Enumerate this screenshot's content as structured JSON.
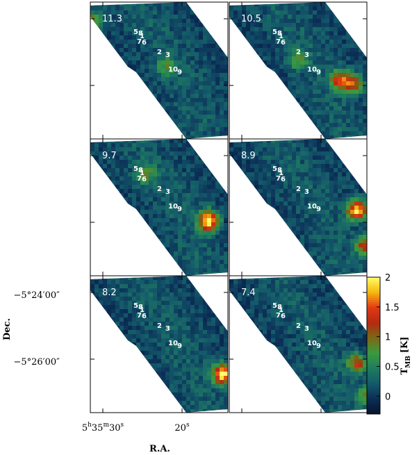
{
  "chart_data": {
    "type": "heatmap",
    "layout": "3 rows x 2 columns channel maps",
    "xlabel": "R.A.",
    "ylabel": "Dec.",
    "x_ticks": [
      {
        "label_html": "5h35m30s",
        "h": "h",
        "m": "m",
        "s": "s",
        "text_pre": "5",
        "text_mid1": "35",
        "text_mid2": "30"
      },
      {
        "label": "20s",
        "num": "20",
        "unit": "s"
      }
    ],
    "y_ticks": [
      "−5°24′00″",
      "−5°26′00″"
    ],
    "colorbar": {
      "label_main": "T",
      "label_sub": "MB",
      "label_unit": "[K]",
      "ticks": [
        2,
        1.5,
        1,
        0.5,
        0
      ],
      "range": [
        -0.3,
        2.0
      ],
      "colormap": [
        "#06142b",
        "#0b2f57",
        "#145a6a",
        "#1f7b5e",
        "#3b9a3f",
        "#7a6a15",
        "#b32a12",
        "#e23a16",
        "#f6b80e",
        "#ffff6a"
      ]
    },
    "panels": [
      {
        "velocity": "11.3",
        "peaks": [
          {
            "u": 0.02,
            "v": 0.14,
            "val": 0.9
          },
          {
            "u": 0.55,
            "v": 0.47,
            "val": 0.6
          }
        ]
      },
      {
        "velocity": "10.5",
        "peaks": [
          {
            "u": 0.8,
            "v": 0.57,
            "val": 1.25
          },
          {
            "u": 0.9,
            "v": 0.6,
            "val": 1.2
          },
          {
            "u": 0.5,
            "v": 0.42,
            "val": 0.7
          }
        ]
      },
      {
        "velocity": "9.7",
        "peaks": [
          {
            "u": 0.86,
            "v": 0.6,
            "val": 2.0
          },
          {
            "u": 0.4,
            "v": 0.26,
            "val": 0.7
          }
        ]
      },
      {
        "velocity": "8.9",
        "peaks": [
          {
            "u": 0.93,
            "v": 0.52,
            "val": 1.9
          },
          {
            "u": 0.99,
            "v": 0.78,
            "val": 1.3
          }
        ]
      },
      {
        "velocity": "8.2",
        "peaks": [
          {
            "u": 0.96,
            "v": 0.72,
            "val": 2.0
          }
        ]
      },
      {
        "velocity": "7.4",
        "peaks": [
          {
            "u": 0.93,
            "v": 0.64,
            "val": 1.2
          },
          {
            "u": 0.99,
            "v": 0.88,
            "val": 0.7
          }
        ]
      }
    ],
    "source_labels": [
      "5",
      "8",
      "1",
      "7",
      "6",
      "2",
      "3",
      "10",
      "9"
    ]
  }
}
